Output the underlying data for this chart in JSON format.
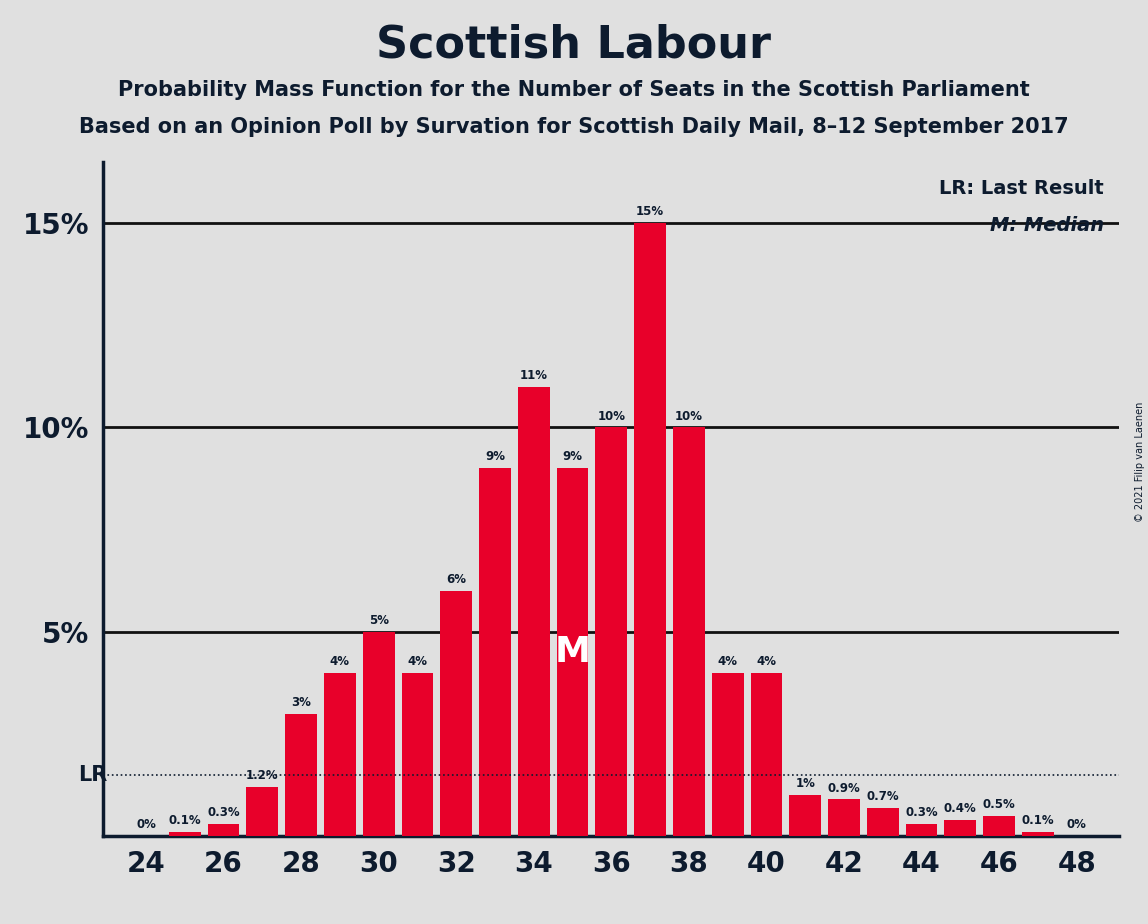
{
  "title": "Scottish Labour",
  "subtitle1": "Probability Mass Function for the Number of Seats in the Scottish Parliament",
  "subtitle2": "Based on an Opinion Poll by Survation for Scottish Daily Mail, 8–12 September 2017",
  "copyright": "© 2021 Filip van Laenen",
  "seats": [
    24,
    25,
    26,
    27,
    28,
    29,
    30,
    31,
    32,
    33,
    34,
    35,
    36,
    37,
    38,
    39,
    40,
    41,
    42,
    43,
    44,
    45,
    46,
    47,
    48
  ],
  "probabilities": [
    0.0,
    0.1,
    0.3,
    1.2,
    3.0,
    4.0,
    5.0,
    4.0,
    6.0,
    9.0,
    11.0,
    9.0,
    10.0,
    15.0,
    10.0,
    4.0,
    4.0,
    1.0,
    0.9,
    0.7,
    0.3,
    0.4,
    0.5,
    0.1,
    0.0
  ],
  "bar_color": "#e8002a",
  "background_color": "#e0e0e0",
  "text_color": "#0d1b2e",
  "lr_seat": 24,
  "lr_prob": 1.5,
  "median_seat": 35,
  "ylim": [
    0,
    16.5
  ],
  "legend_lr": "LR: Last Result",
  "legend_m": "M: Median",
  "grid_color": "#999999",
  "solid_line_color": "#111111"
}
